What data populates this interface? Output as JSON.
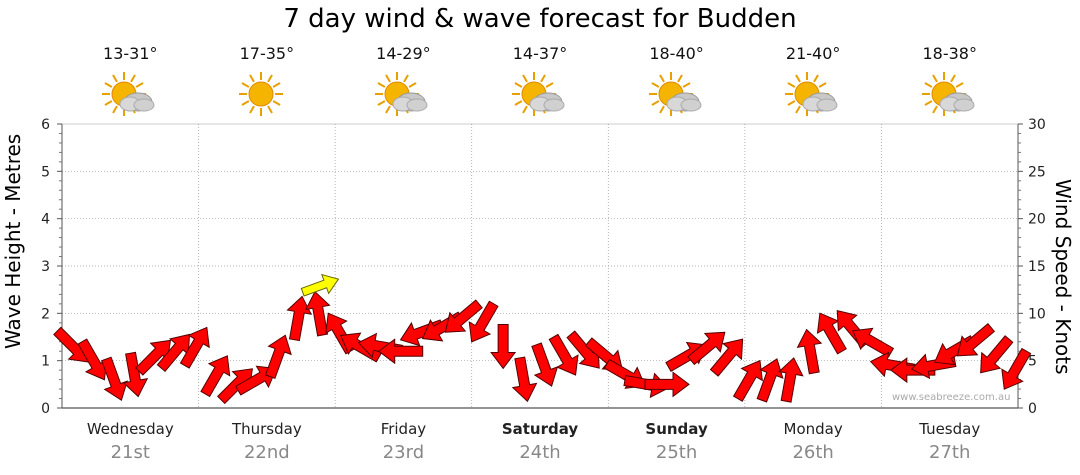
{
  "title": "7 day wind & wave forecast for Budden",
  "watermark": "www.seabreeze.com.au",
  "days": [
    {
      "name": "Wednesday",
      "date": "21st",
      "temp": "13-31°",
      "icon": "sun-cloud-icon",
      "bold": false
    },
    {
      "name": "Thursday",
      "date": "22nd",
      "temp": "17-35°",
      "icon": "sun-icon",
      "bold": false
    },
    {
      "name": "Friday",
      "date": "23rd",
      "temp": "14-29°",
      "icon": "sun-cloud-icon",
      "bold": false
    },
    {
      "name": "Saturday",
      "date": "24th",
      "temp": "14-37°",
      "icon": "sun-cloud-icon",
      "bold": true
    },
    {
      "name": "Sunday",
      "date": "25th",
      "temp": "18-40°",
      "icon": "sun-cloud-icon",
      "bold": true
    },
    {
      "name": "Monday",
      "date": "26th",
      "temp": "21-40°",
      "icon": "sun-cloud-icon",
      "bold": false
    },
    {
      "name": "Tuesday",
      "date": "27th",
      "temp": "18-38°",
      "icon": "sun-cloud-icon",
      "bold": false
    }
  ],
  "chart_data": {
    "type": "line",
    "ylabel_left": "Wave Height - Metres",
    "ylabel_right": "Wind Speed - Knots",
    "ylim_left": [
      0,
      6
    ],
    "ylim_right": [
      0,
      30
    ],
    "yticks_left": [
      "0",
      "1",
      "2",
      "3",
      "4",
      "5",
      "6"
    ],
    "yticks_right": [
      "0",
      "5",
      "10",
      "15",
      "20",
      "25",
      "30"
    ],
    "grid": true,
    "colors": {
      "wind": "#ff0000",
      "wind_highlight": "#ffff00",
      "grid": "#999999"
    },
    "series": [
      {
        "x_days": [
          0.0,
          0.15,
          0.3,
          0.45,
          0.6,
          0.75,
          0.9,
          1.05,
          1.2,
          1.35,
          1.5,
          1.65,
          1.8,
          1.95,
          2.1,
          2.25,
          2.4,
          2.55,
          2.7,
          2.85,
          3.0,
          3.15,
          3.3,
          3.45,
          3.6,
          3.75,
          3.9,
          4.05,
          4.2,
          4.35,
          4.5,
          4.65,
          4.8,
          4.95,
          5.1,
          5.25,
          5.4,
          5.55,
          5.7,
          5.85,
          6.0,
          6.15,
          6.3,
          6.45,
          6.6,
          6.75,
          6.9
        ],
        "values": [
          6.5,
          5,
          3,
          3.5,
          5.5,
          6,
          6.5,
          3.5,
          2.5,
          3,
          5.5,
          9.5,
          10,
          8,
          6.5,
          6.5,
          6,
          8,
          8.5,
          9.5,
          9,
          6.5,
          3,
          4.5,
          5.5,
          6,
          5.5,
          3.5,
          2.5,
          2.5,
          5.5,
          6.5,
          5.5,
          3,
          3,
          3,
          6,
          8,
          8.5,
          7,
          4.5,
          4,
          4.5,
          6,
          7,
          5.5,
          4
        ],
        "directions_deg": [
          135,
          150,
          160,
          170,
          45,
          40,
          30,
          30,
          45,
          60,
          20,
          10,
          350,
          330,
          300,
          280,
          270,
          250,
          240,
          230,
          210,
          180,
          170,
          160,
          150,
          140,
          130,
          120,
          100,
          90,
          60,
          50,
          40,
          30,
          20,
          10,
          350,
          330,
          320,
          300,
          280,
          270,
          260,
          240,
          230,
          220,
          210
        ]
      }
    ]
  }
}
